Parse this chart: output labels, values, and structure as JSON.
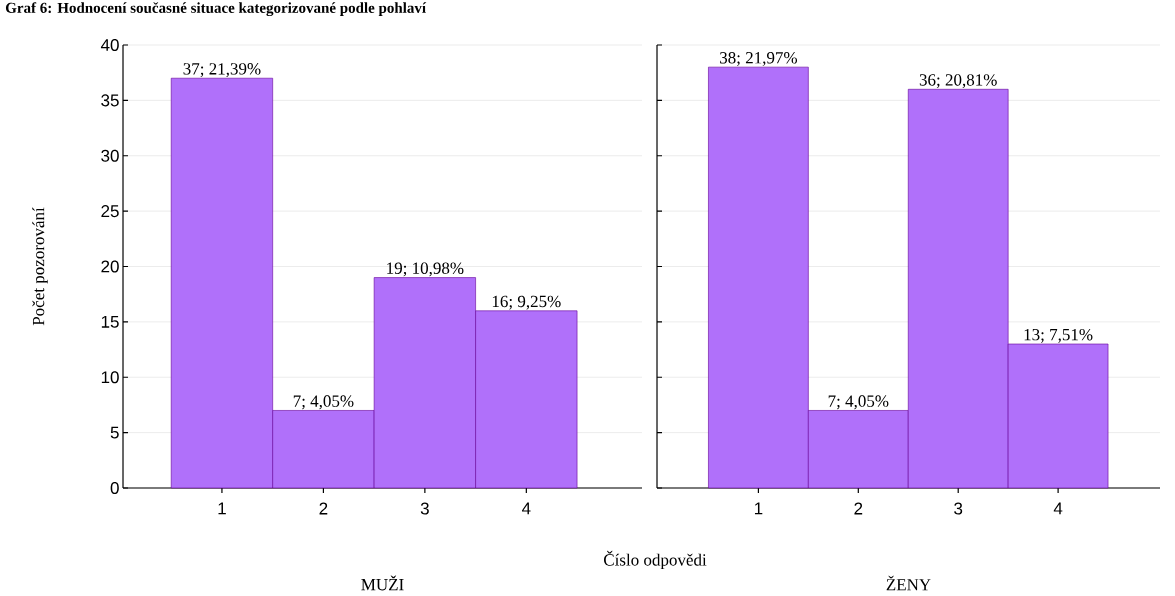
{
  "chart_data": [
    {
      "type": "bar",
      "title": "Graf 6: Hodnocení současné situace kategorizované podle pohlaví",
      "subtitle": "MUŽI",
      "xlabel": "Číslo odpovědi",
      "ylabel": "Počet pozorování",
      "categories": [
        "1",
        "2",
        "3",
        "4"
      ],
      "values": [
        37,
        7,
        19,
        16
      ],
      "value_labels": [
        "37; 21,39%",
        "7; 4,05%",
        "19; 10,98%",
        "16; 9,25%"
      ],
      "color": "#b070fa",
      "ylim": [
        0,
        40
      ],
      "yticks": [
        0,
        5,
        10,
        15,
        20,
        25,
        30,
        35,
        40
      ],
      "grid": "y"
    },
    {
      "type": "bar",
      "subtitle": "ŽENY",
      "categories": [
        "1",
        "2",
        "3",
        "4"
      ],
      "values": [
        38,
        7,
        36,
        13
      ],
      "value_labels": [
        "38; 21,97%",
        "7; 4,05%",
        "36; 20,81%",
        "13; 7,51%"
      ],
      "color": "#b070fa",
      "ylim": [
        0,
        40
      ],
      "yticks": [
        0,
        5,
        10,
        15,
        20,
        25,
        30,
        35,
        40
      ],
      "grid": "y",
      "tick_labels": "x"
    }
  ]
}
